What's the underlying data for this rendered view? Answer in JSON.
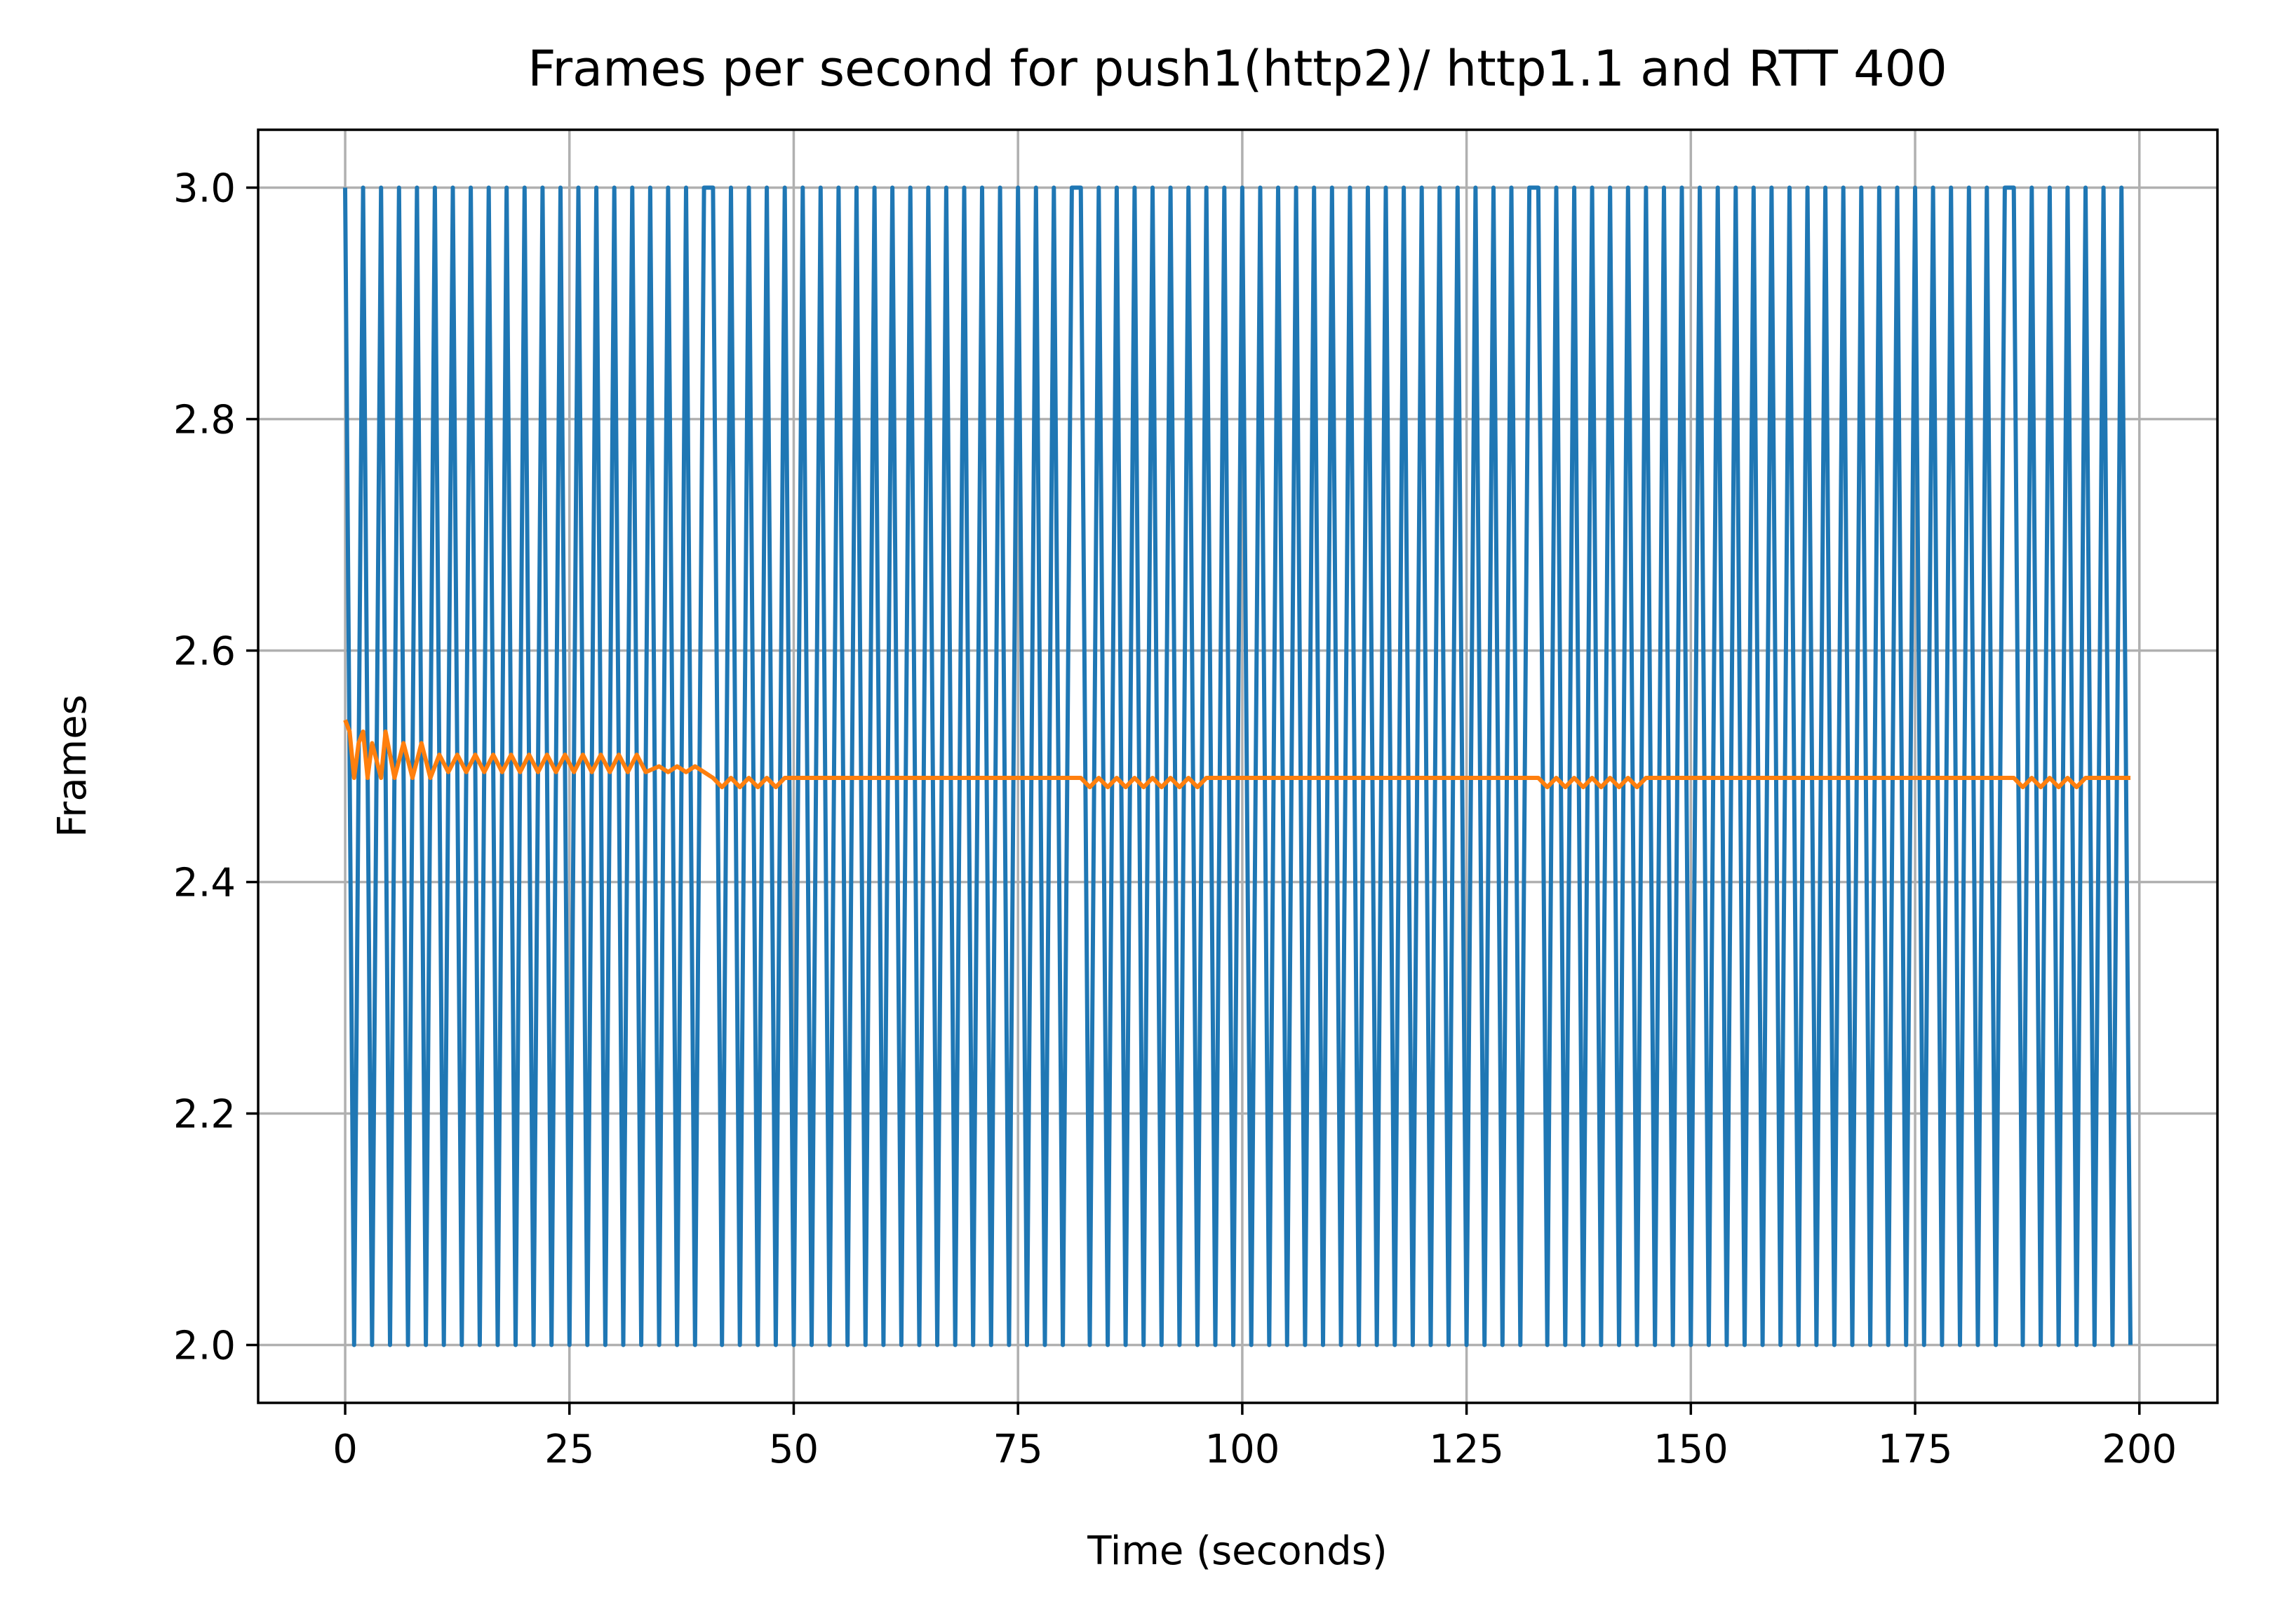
{
  "chart_data": {
    "type": "line",
    "title": "Frames per second for push1(http2)/ http1.1 and RTT 400",
    "xlabel": "Time (seconds)",
    "ylabel": "Frames",
    "xlim": [
      -9.7,
      208.7
    ],
    "ylim": [
      1.95,
      3.05
    ],
    "xticks": [
      0,
      25,
      50,
      75,
      100,
      125,
      150,
      175,
      200
    ],
    "xtick_labels": [
      "0",
      "25",
      "50",
      "75",
      "100",
      "125",
      "150",
      "175",
      "200"
    ],
    "yticks": [
      2.0,
      2.2,
      2.4,
      2.6,
      2.8,
      3.0
    ],
    "ytick_labels": [
      "2.0",
      "2.2",
      "2.4",
      "2.6",
      "2.8",
      "3.0"
    ],
    "grid": true,
    "legend": "none",
    "colors": [
      "#1f77b4",
      "#ff7f0e"
    ],
    "series": [
      {
        "style": "alternating",
        "x_start": 0,
        "x_end": 199,
        "step": 1,
        "high": 3.0,
        "low": 2.0,
        "phase_breaks": [
          41,
          82,
          133,
          186
        ]
      },
      {
        "style": "smoothed",
        "points": [
          [
            0,
            2.54
          ],
          [
            0.5,
            2.53
          ],
          [
            1,
            2.49
          ],
          [
            1.5,
            2.52
          ],
          [
            2,
            2.53
          ],
          [
            2.5,
            2.49
          ],
          [
            3,
            2.52
          ],
          [
            4,
            2.49
          ],
          [
            4.5,
            2.53
          ],
          [
            5.5,
            2.49
          ],
          [
            6.5,
            2.52
          ],
          [
            7.5,
            2.49
          ],
          [
            8.5,
            2.52
          ],
          [
            9.5,
            2.49
          ],
          [
            10.5,
            2.51
          ],
          [
            11.5,
            2.495
          ],
          [
            12.5,
            2.51
          ],
          [
            13.5,
            2.495
          ],
          [
            14.5,
            2.51
          ],
          [
            15.5,
            2.495
          ],
          [
            16.5,
            2.51
          ],
          [
            17.5,
            2.495
          ],
          [
            18.5,
            2.51
          ],
          [
            19.5,
            2.495
          ],
          [
            20.5,
            2.51
          ],
          [
            21.5,
            2.495
          ],
          [
            22.5,
            2.51
          ],
          [
            23.5,
            2.495
          ],
          [
            24.5,
            2.51
          ],
          [
            25.5,
            2.495
          ],
          [
            26.5,
            2.51
          ],
          [
            27.5,
            2.495
          ],
          [
            28.5,
            2.51
          ],
          [
            29.5,
            2.495
          ],
          [
            30.5,
            2.51
          ],
          [
            31.5,
            2.495
          ],
          [
            32.5,
            2.51
          ],
          [
            33.5,
            2.495
          ],
          [
            35,
            2.5
          ],
          [
            36,
            2.495
          ],
          [
            37,
            2.5
          ],
          [
            38,
            2.495
          ],
          [
            39,
            2.5
          ],
          [
            40,
            2.495
          ],
          [
            41,
            2.49
          ],
          [
            42,
            2.482
          ],
          [
            43,
            2.49
          ],
          [
            44,
            2.482
          ],
          [
            45,
            2.49
          ],
          [
            46,
            2.482
          ],
          [
            47,
            2.49
          ],
          [
            48,
            2.482
          ],
          [
            49,
            2.49
          ],
          [
            82,
            2.49
          ],
          [
            83,
            2.482
          ],
          [
            84,
            2.49
          ],
          [
            85,
            2.482
          ],
          [
            86,
            2.49
          ],
          [
            87,
            2.482
          ],
          [
            88,
            2.49
          ],
          [
            89,
            2.482
          ],
          [
            90,
            2.49
          ],
          [
            91,
            2.482
          ],
          [
            92,
            2.49
          ],
          [
            93,
            2.482
          ],
          [
            94,
            2.49
          ],
          [
            95,
            2.482
          ],
          [
            96,
            2.49
          ],
          [
            133,
            2.49
          ],
          [
            134,
            2.482
          ],
          [
            135,
            2.49
          ],
          [
            136,
            2.482
          ],
          [
            137,
            2.49
          ],
          [
            138,
            2.482
          ],
          [
            139,
            2.49
          ],
          [
            140,
            2.482
          ],
          [
            141,
            2.49
          ],
          [
            142,
            2.482
          ],
          [
            143,
            2.49
          ],
          [
            144,
            2.482
          ],
          [
            145,
            2.49
          ],
          [
            186,
            2.49
          ],
          [
            187,
            2.482
          ],
          [
            188,
            2.49
          ],
          [
            189,
            2.482
          ],
          [
            190,
            2.49
          ],
          [
            191,
            2.482
          ],
          [
            192,
            2.49
          ],
          [
            193,
            2.482
          ],
          [
            194,
            2.49
          ],
          [
            199,
            2.49
          ]
        ]
      }
    ]
  }
}
